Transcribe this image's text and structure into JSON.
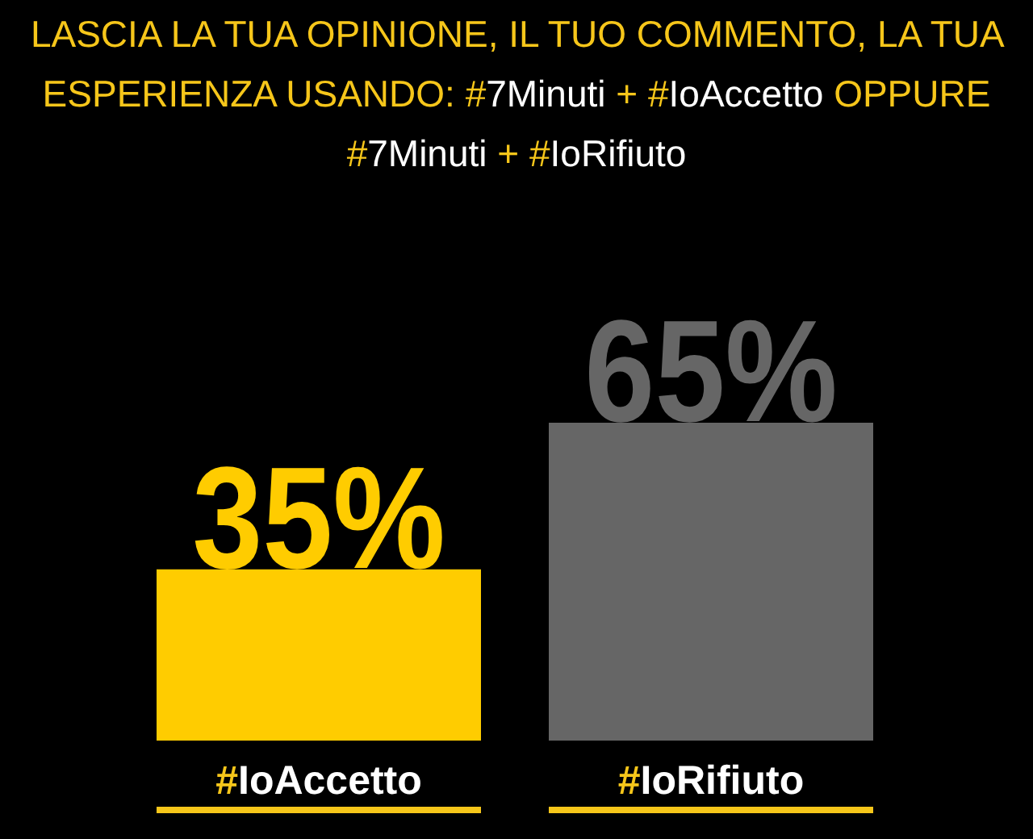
{
  "chart_data": {
    "type": "bar",
    "title": "LASCIA LA TUA OPINIONE, IL TUO COMMENTO, LA TUA ESPERIENZA USANDO: #7Minuti + #IoAccetto OPPURE #7Minuti + #IoRifiuto",
    "categories": [
      "#IoAccetto",
      "#IoRifiuto"
    ],
    "values": [
      35,
      65
    ],
    "colors": [
      "#ffcc00",
      "#666666"
    ],
    "value_labels": [
      "35%",
      "65%"
    ]
  }
}
